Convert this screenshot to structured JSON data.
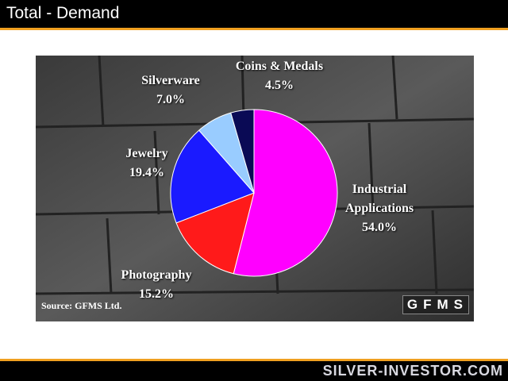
{
  "slide": {
    "title": "Total - Demand",
    "footer": "SILVER-INVESTOR.COM"
  },
  "chart_data": {
    "type": "pie",
    "categories": [
      "Industrial Applications",
      "Photography",
      "Jewelry",
      "Silverware",
      "Coins & Medals"
    ],
    "values": [
      54.0,
      15.2,
      19.4,
      7.0,
      4.5
    ],
    "value_labels": [
      "54.0%",
      "15.2%",
      "19.4%",
      "7.0%",
      "4.5%"
    ],
    "colors": [
      "#ff00ff",
      "#ff1a1a",
      "#1a1aff",
      "#99ccff",
      "#0a0a55"
    ],
    "source": "Source: GFMS Ltd.",
    "logo": "GFMS"
  }
}
